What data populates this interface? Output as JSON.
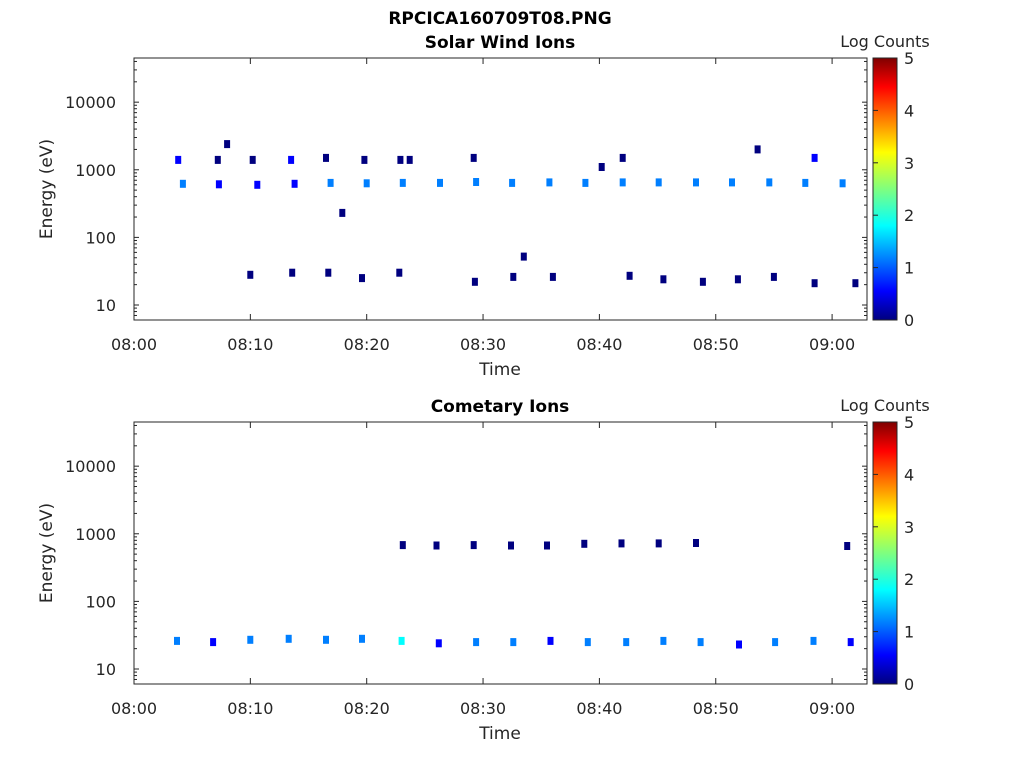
{
  "figure_title": "RPCICA160709T08.PNG",
  "colormap": [
    "#00007f",
    "#0000ff",
    "#007fff",
    "#00ffff",
    "#7fff7f",
    "#ffff00",
    "#ff7f00",
    "#ff0000",
    "#7f0000"
  ],
  "chart_data": [
    {
      "type": "heatmap",
      "title": "Solar Wind Ions",
      "xlabel": "Time",
      "ylabel": "Energy (eV)",
      "yscale": "log",
      "ylim": [
        6,
        45000
      ],
      "xlim": [
        "08:00",
        "09:03"
      ],
      "x_ticks": [
        "08:00",
        "08:10",
        "08:20",
        "08:30",
        "08:40",
        "08:50",
        "09:00"
      ],
      "y_ticks": [
        "10",
        "100",
        "1000",
        "10000"
      ],
      "colorbar": {
        "label": "Log Counts",
        "min": 0,
        "max": 5,
        "ticks": [
          "0",
          "1",
          "2",
          "3",
          "4",
          "5"
        ]
      },
      "points": [
        {
          "time": "08:04:12",
          "energy": 620,
          "log_counts": 1.2
        },
        {
          "time": "08:07:18",
          "energy": 610,
          "log_counts": 1.1
        },
        {
          "time": "08:10:36",
          "energy": 600,
          "log_counts": 1.0
        },
        {
          "time": "08:13:48",
          "energy": 620,
          "log_counts": 1.1
        },
        {
          "time": "08:16:54",
          "energy": 640,
          "log_counts": 1.6
        },
        {
          "time": "08:20:00",
          "energy": 630,
          "log_counts": 1.2
        },
        {
          "time": "08:23:06",
          "energy": 640,
          "log_counts": 1.4
        },
        {
          "time": "08:26:18",
          "energy": 640,
          "log_counts": 1.3
        },
        {
          "time": "08:29:24",
          "energy": 660,
          "log_counts": 1.5
        },
        {
          "time": "08:32:30",
          "energy": 640,
          "log_counts": 1.3
        },
        {
          "time": "08:35:42",
          "energy": 650,
          "log_counts": 1.4
        },
        {
          "time": "08:38:48",
          "energy": 640,
          "log_counts": 1.3
        },
        {
          "time": "08:42:00",
          "energy": 650,
          "log_counts": 1.4
        },
        {
          "time": "08:45:06",
          "energy": 650,
          "log_counts": 1.4
        },
        {
          "time": "08:48:18",
          "energy": 650,
          "log_counts": 1.4
        },
        {
          "time": "08:51:24",
          "energy": 650,
          "log_counts": 1.3
        },
        {
          "time": "08:54:36",
          "energy": 650,
          "log_counts": 1.4
        },
        {
          "time": "08:57:42",
          "energy": 640,
          "log_counts": 1.3
        },
        {
          "time": "09:00:54",
          "energy": 630,
          "log_counts": 1.3
        },
        {
          "time": "08:03:48",
          "energy": 1400,
          "log_counts": 0.6
        },
        {
          "time": "08:07:12",
          "energy": 1400,
          "log_counts": 0.3
        },
        {
          "time": "08:10:12",
          "energy": 1400,
          "log_counts": 0.4
        },
        {
          "time": "08:13:30",
          "energy": 1400,
          "log_counts": 0.6
        },
        {
          "time": "08:16:30",
          "energy": 1500,
          "log_counts": 0.5
        },
        {
          "time": "08:19:48",
          "energy": 1400,
          "log_counts": 0.3
        },
        {
          "time": "08:22:54",
          "energy": 1400,
          "log_counts": 0.4
        },
        {
          "time": "08:23:42",
          "energy": 1400,
          "log_counts": 0.3
        },
        {
          "time": "08:29:12",
          "energy": 1500,
          "log_counts": 0.5
        },
        {
          "time": "08:42:00",
          "energy": 1500,
          "log_counts": 0.4
        },
        {
          "time": "08:58:30",
          "energy": 1500,
          "log_counts": 0.7
        },
        {
          "time": "08:08:00",
          "energy": 2400,
          "log_counts": 0.3
        },
        {
          "time": "08:40:12",
          "energy": 1100,
          "log_counts": 0.3
        },
        {
          "time": "08:53:36",
          "energy": 2000,
          "log_counts": 0.3
        },
        {
          "time": "08:17:54",
          "energy": 230,
          "log_counts": 0.3
        },
        {
          "time": "08:33:30",
          "energy": 52,
          "log_counts": 0.3
        },
        {
          "time": "08:10:00",
          "energy": 28,
          "log_counts": 0.3
        },
        {
          "time": "08:13:36",
          "energy": 30,
          "log_counts": 0.4
        },
        {
          "time": "08:16:42",
          "energy": 30,
          "log_counts": 0.3
        },
        {
          "time": "08:19:36",
          "energy": 25,
          "log_counts": 0.4
        },
        {
          "time": "08:22:48",
          "energy": 30,
          "log_counts": 0.3
        },
        {
          "time": "08:29:18",
          "energy": 22,
          "log_counts": 0.3
        },
        {
          "time": "08:32:36",
          "energy": 26,
          "log_counts": 0.3
        },
        {
          "time": "08:36:00",
          "energy": 26,
          "log_counts": 0.3
        },
        {
          "time": "08:42:36",
          "energy": 27,
          "log_counts": 0.4
        },
        {
          "time": "08:45:30",
          "energy": 24,
          "log_counts": 0.3
        },
        {
          "time": "08:48:54",
          "energy": 22,
          "log_counts": 0.3
        },
        {
          "time": "08:51:54",
          "energy": 24,
          "log_counts": 0.3
        },
        {
          "time": "08:55:00",
          "energy": 26,
          "log_counts": 0.3
        },
        {
          "time": "08:58:30",
          "energy": 21,
          "log_counts": 0.3
        },
        {
          "time": "09:02:00",
          "energy": 21,
          "log_counts": 0.3
        }
      ]
    },
    {
      "type": "heatmap",
      "title": "Cometary Ions",
      "xlabel": "Time",
      "ylabel": "Energy (eV)",
      "yscale": "log",
      "ylim": [
        6,
        45000
      ],
      "xlim": [
        "08:00",
        "09:03"
      ],
      "x_ticks": [
        "08:00",
        "08:10",
        "08:20",
        "08:30",
        "08:40",
        "08:50",
        "09:00"
      ],
      "y_ticks": [
        "10",
        "100",
        "1000",
        "10000"
      ],
      "colorbar": {
        "label": "Log Counts",
        "min": 0,
        "max": 5,
        "ticks": [
          "0",
          "1",
          "2",
          "3",
          "4",
          "5"
        ]
      },
      "points": [
        {
          "time": "08:03:42",
          "energy": 26,
          "log_counts": 1.2
        },
        {
          "time": "08:06:48",
          "energy": 25,
          "log_counts": 1.0
        },
        {
          "time": "08:10:00",
          "energy": 27,
          "log_counts": 1.5
        },
        {
          "time": "08:13:18",
          "energy": 28,
          "log_counts": 1.5
        },
        {
          "time": "08:16:30",
          "energy": 27,
          "log_counts": 1.4
        },
        {
          "time": "08:19:36",
          "energy": 28,
          "log_counts": 1.6
        },
        {
          "time": "08:23:00",
          "energy": 26,
          "log_counts": 1.8
        },
        {
          "time": "08:26:12",
          "energy": 24,
          "log_counts": 1.0
        },
        {
          "time": "08:29:24",
          "energy": 25,
          "log_counts": 1.3
        },
        {
          "time": "08:32:36",
          "energy": 25,
          "log_counts": 1.2
        },
        {
          "time": "08:35:48",
          "energy": 26,
          "log_counts": 1.1
        },
        {
          "time": "08:39:00",
          "energy": 25,
          "log_counts": 1.3
        },
        {
          "time": "08:42:18",
          "energy": 25,
          "log_counts": 1.2
        },
        {
          "time": "08:45:30",
          "energy": 26,
          "log_counts": 1.4
        },
        {
          "time": "08:48:42",
          "energy": 25,
          "log_counts": 1.5
        },
        {
          "time": "08:52:00",
          "energy": 23,
          "log_counts": 1.0
        },
        {
          "time": "08:55:06",
          "energy": 25,
          "log_counts": 1.2
        },
        {
          "time": "08:58:24",
          "energy": 26,
          "log_counts": 1.4
        },
        {
          "time": "09:01:36",
          "energy": 25,
          "log_counts": 1.1
        },
        {
          "time": "08:23:06",
          "energy": 680,
          "log_counts": 0.3
        },
        {
          "time": "08:26:00",
          "energy": 670,
          "log_counts": 0.3
        },
        {
          "time": "08:29:12",
          "energy": 680,
          "log_counts": 0.3
        },
        {
          "time": "08:32:24",
          "energy": 670,
          "log_counts": 0.3
        },
        {
          "time": "08:35:30",
          "energy": 670,
          "log_counts": 0.3
        },
        {
          "time": "08:38:42",
          "energy": 710,
          "log_counts": 0.4
        },
        {
          "time": "08:41:54",
          "energy": 720,
          "log_counts": 0.3
        },
        {
          "time": "08:45:06",
          "energy": 720,
          "log_counts": 0.3
        },
        {
          "time": "08:48:18",
          "energy": 730,
          "log_counts": 0.3
        },
        {
          "time": "09:01:18",
          "energy": 660,
          "log_counts": 0.4
        }
      ]
    }
  ]
}
